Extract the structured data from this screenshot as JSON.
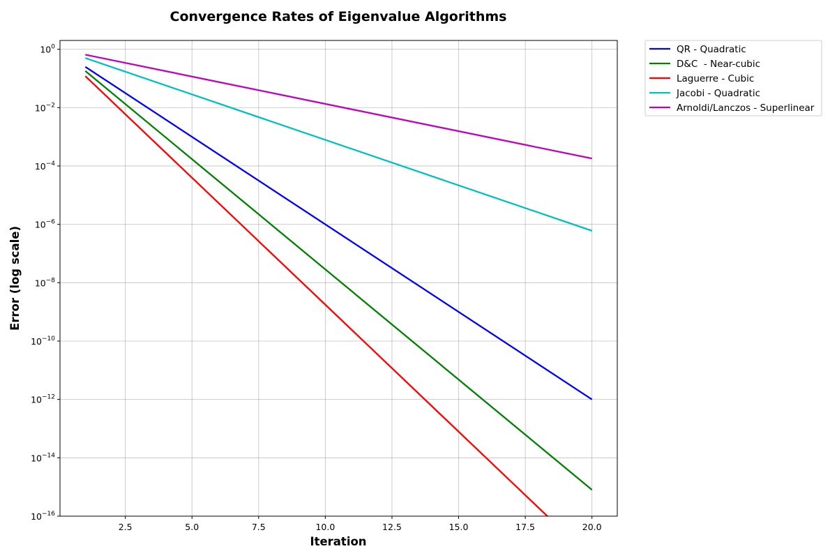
{
  "chart_data": {
    "type": "line",
    "title": "Convergence Rates of Eigenvalue Algorithms",
    "xlabel": "Iteration",
    "ylabel": "Error (log scale)",
    "xlim": [
      0.05,
      20.95
    ],
    "ylim": [
      1e-16,
      2
    ],
    "yscale": "log",
    "grid": true,
    "legend_position": "outside-top-right",
    "x_ticks": [
      2.5,
      5.0,
      7.5,
      10.0,
      12.5,
      15.0,
      17.5,
      20.0
    ],
    "x_tick_labels": [
      "2.5",
      "5.0",
      "7.5",
      "10.0",
      "12.5",
      "15.0",
      "17.5",
      "20.0"
    ],
    "y_tick_exponents": [
      0,
      -2,
      -4,
      -6,
      -8,
      -10,
      -12,
      -14,
      -16
    ],
    "y_tick_base": "10",
    "series": [
      {
        "name": "QR - Quadratic",
        "color": "#0000ff",
        "x": [
          1,
          20
        ],
        "y": [
          0.25,
          1e-12
        ]
      },
      {
        "name": "D&C  - Near-cubic",
        "color": "#008000",
        "x": [
          1,
          20
        ],
        "y": [
          0.18,
          8e-16
        ]
      },
      {
        "name": "Laguerre - Cubic",
        "color": "#ff0000",
        "x": [
          1,
          20
        ],
        "y": [
          0.12,
          3.5e-18
        ]
      },
      {
        "name": "Jacobi - Quadratic",
        "color": "#00bfbf",
        "x": [
          1,
          20
        ],
        "y": [
          0.5,
          6e-07
        ]
      },
      {
        "name": "Arnoldi/Lanczos - Superlinear",
        "color": "#bf00bf",
        "x": [
          1,
          20
        ],
        "y": [
          0.65,
          0.00018
        ]
      }
    ]
  }
}
